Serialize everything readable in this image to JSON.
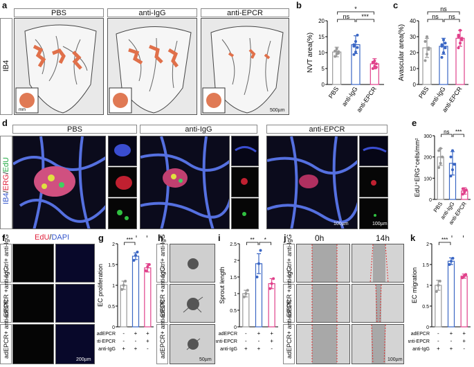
{
  "panels": {
    "a": "a",
    "b": "b",
    "c": "c",
    "d": "d",
    "e": "e",
    "f": "f",
    "g": "g",
    "h": "h",
    "i": "i",
    "j": "j",
    "k": "k"
  },
  "row_a": {
    "headers": [
      "PBS",
      "anti-IgG",
      "anti-EPCR"
    ],
    "side_label": "IB4",
    "scale": "500µm",
    "inset_scale": "mm"
  },
  "row_d": {
    "headers": [
      "PBS",
      "anti-IgG",
      "anti-EPCR"
    ],
    "side_label": "IB4/ERG/EdU",
    "side_parts": [
      "IB4",
      "/",
      "ERG",
      "/",
      "EdU"
    ],
    "side_colors": [
      "#3355cc",
      "#222",
      "#e0203a",
      "#222",
      "#22aa44"
    ],
    "scale1": "100µm",
    "scale2": "100µm"
  },
  "row_f": {
    "header_edu": "EdU",
    "header_sep": "/",
    "header_dapi": "DAPI",
    "rows": [
      "adCtrl+ anti-IgG",
      "adEPCR +anti-IgG",
      "adEPCR+ anti-EPCR"
    ],
    "scale": "200µm"
  },
  "row_h": {
    "rows": [
      "adCtrl+ anti-IgG",
      "adEPCR +anti-IgG",
      "adEPCR+ anti-EPCR"
    ],
    "scale": "50µm"
  },
  "row_j": {
    "headers": [
      "0h",
      "14h"
    ],
    "rows": [
      "adCtrl+ anti-IgG",
      "adEPCR +anti-IgG",
      "adEPCR+ anti-EPCR"
    ],
    "scale": "100µm"
  },
  "chart_data": [
    {
      "panel": "b",
      "type": "bar",
      "categories": [
        "PBS",
        "anti-IgG",
        "anti-EPCR"
      ],
      "values": [
        10.2,
        12.5,
        6.5
      ],
      "errors": [
        1.5,
        2.8,
        1.6
      ],
      "points": [
        [
          8.8,
          9.6,
          10.3,
          10.5,
          11.2,
          9.8
        ],
        [
          9.4,
          10.2,
          11.6,
          12.5,
          13.5,
          15.5,
          12.0
        ],
        [
          5.0,
          5.7,
          6.5,
          7.0,
          7.4,
          5.4,
          6.8
        ]
      ],
      "colors": [
        "#999999",
        "#3a66c4",
        "#e0408a"
      ],
      "ylabel": "NVT area(%)",
      "yticks": [
        0,
        5,
        10,
        15,
        20
      ],
      "ylim": [
        0,
        20
      ],
      "sig": [
        {
          "from": 0,
          "to": 1,
          "label": "ns",
          "level": 0
        },
        {
          "from": 1,
          "to": 2,
          "label": "***",
          "level": 0
        },
        {
          "from": 0,
          "to": 2,
          "label": "*",
          "level": 1
        }
      ]
    },
    {
      "panel": "c",
      "type": "bar",
      "categories": [
        "PBS",
        "anti-IgG",
        "anti-EPCR"
      ],
      "values": [
        23,
        24,
        29
      ],
      "errors": [
        6,
        5,
        5
      ],
      "points": [
        [
          15,
          19,
          23,
          27,
          30,
          22
        ],
        [
          17,
          20,
          23,
          25,
          28,
          26,
          24
        ],
        [
          23,
          26,
          29,
          31,
          34,
          28,
          30
        ]
      ],
      "colors": [
        "#999999",
        "#3a66c4",
        "#e0408a"
      ],
      "ylabel": "Avascular area(%)",
      "yticks": [
        0,
        10,
        20,
        30,
        40
      ],
      "ylim": [
        0,
        40
      ],
      "sig": [
        {
          "from": 0,
          "to": 1,
          "label": "ns",
          "level": 0
        },
        {
          "from": 1,
          "to": 2,
          "label": "ns",
          "level": 0
        },
        {
          "from": 0,
          "to": 2,
          "label": "ns",
          "level": 1
        }
      ]
    },
    {
      "panel": "e",
      "type": "bar",
      "categories": [
        "PBS",
        "anti-IgG",
        "anti-EPCR"
      ],
      "values": [
        200,
        170,
        40
      ],
      "errors": [
        40,
        55,
        15
      ],
      "points": [
        [
          150,
          170,
          200,
          230,
          240
        ],
        [
          110,
          140,
          165,
          200,
          230
        ],
        [
          25,
          35,
          45,
          50,
          40
        ]
      ],
      "colors": [
        "#999999",
        "#3a66c4",
        "#e0408a"
      ],
      "ylabel": "EdU⁺ERG⁺cells/mm²",
      "yticks": [
        0,
        100,
        200,
        300
      ],
      "ylim": [
        0,
        300
      ],
      "sig": [
        {
          "from": 0,
          "to": 1,
          "label": "ns",
          "level": 0
        },
        {
          "from": 1,
          "to": 2,
          "label": "***",
          "level": 0
        }
      ]
    },
    {
      "panel": "g",
      "type": "bar",
      "categories": [
        "",
        "",
        ""
      ],
      "values": [
        1.0,
        1.7,
        1.42
      ],
      "errors": [
        0.1,
        0.08,
        0.1
      ],
      "points": [
        [
          0.9,
          1.0,
          1.1
        ],
        [
          1.6,
          1.72,
          1.8
        ],
        [
          1.35,
          1.45,
          1.5
        ]
      ],
      "colors": [
        "#999999",
        "#3a66c4",
        "#e0408a"
      ],
      "ylabel": "EC proliferation",
      "yticks": [
        0,
        0.5,
        1.0,
        1.5,
        2.0
      ],
      "ylim": [
        0,
        2
      ],
      "sig": [
        {
          "from": 0,
          "to": 1,
          "label": "***",
          "level": 0
        },
        {
          "from": 1,
          "to": 2,
          "label": "*",
          "level": 1
        }
      ],
      "rows": [
        {
          "label": "adEPCR",
          "vals": [
            "-",
            "+",
            "+"
          ]
        },
        {
          "label": "anti-EPCR",
          "vals": [
            "-",
            "-",
            "+"
          ]
        },
        {
          "label": "anti-IgG",
          "vals": [
            "+",
            "+",
            "-"
          ]
        }
      ]
    },
    {
      "panel": "i",
      "type": "bar",
      "categories": [
        "",
        "",
        ""
      ],
      "values": [
        1.0,
        1.9,
        1.3
      ],
      "errors": [
        0.1,
        0.3,
        0.15
      ],
      "points": [
        [
          0.9,
          1.0,
          1.1
        ],
        [
          1.5,
          1.9,
          2.3
        ],
        [
          1.15,
          1.3,
          1.45
        ]
      ],
      "colors": [
        "#999999",
        "#3a66c4",
        "#e0408a"
      ],
      "ylabel": "Sprout length",
      "yticks": [
        0,
        0.5,
        1.0,
        1.5,
        2.0,
        2.5
      ],
      "ylim": [
        0,
        2.5
      ],
      "sig": [
        {
          "from": 0,
          "to": 1,
          "label": "**",
          "level": 0
        },
        {
          "from": 1,
          "to": 2,
          "label": "*",
          "level": 0
        }
      ],
      "rows": [
        {
          "label": "adEPCR",
          "vals": [
            "-",
            "+",
            "+"
          ]
        },
        {
          "label": "anti-EPCR",
          "vals": [
            "-",
            "-",
            "+"
          ]
        },
        {
          "label": "anti-IgG",
          "vals": [
            "+",
            "+",
            "-"
          ]
        }
      ]
    },
    {
      "panel": "k",
      "type": "bar",
      "categories": [
        "",
        "",
        ""
      ],
      "values": [
        1.0,
        1.58,
        1.22
      ],
      "errors": [
        0.12,
        0.08,
        0.05
      ],
      "points": [
        [
          0.85,
          1.0,
          1.1
        ],
        [
          1.5,
          1.58,
          1.65
        ],
        [
          1.18,
          1.22,
          1.26
        ]
      ],
      "colors": [
        "#999999",
        "#3a66c4",
        "#e0408a"
      ],
      "ylabel": "EC migration",
      "yticks": [
        0,
        0.5,
        1.0,
        1.5,
        2.0
      ],
      "ylim": [
        0,
        2
      ],
      "sig": [
        {
          "from": 0,
          "to": 1,
          "label": "***",
          "level": 0
        },
        {
          "from": 1,
          "to": 2,
          "label": "**",
          "level": 1
        }
      ],
      "rows": [
        {
          "label": "adEPCR",
          "vals": [
            "-",
            "+",
            "+"
          ]
        },
        {
          "label": "anti-EPCR",
          "vals": [
            "-",
            "-",
            "+"
          ]
        },
        {
          "label": "anti-IgG",
          "vals": [
            "+",
            "+",
            "-"
          ]
        }
      ]
    }
  ]
}
